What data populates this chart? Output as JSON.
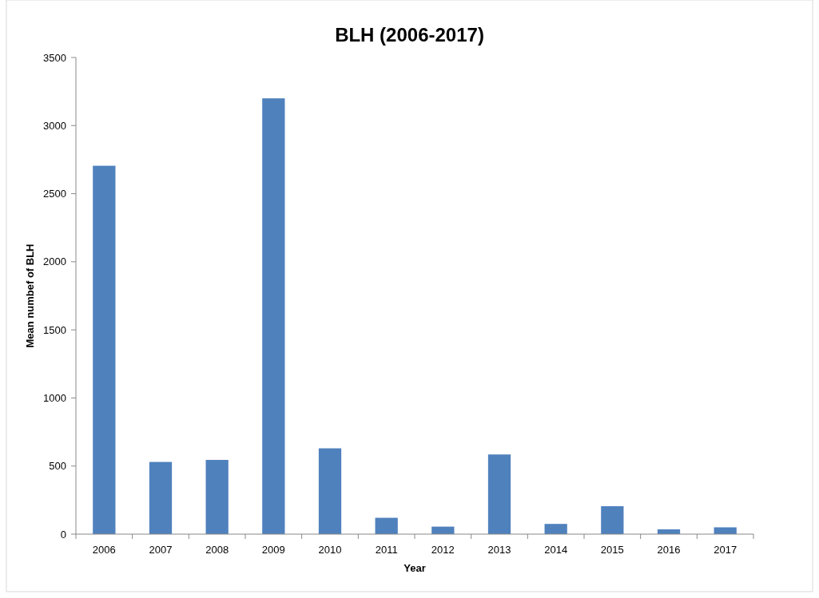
{
  "chart_data": {
    "type": "bar",
    "title": "BLH  (2006-2017)",
    "xlabel": "Year",
    "ylabel": "Mean numbef of BLH",
    "categories": [
      "2006",
      "2007",
      "2008",
      "2009",
      "2010",
      "2011",
      "2012",
      "2013",
      "2014",
      "2015",
      "2016",
      "2017"
    ],
    "values": [
      2705,
      530,
      545,
      3200,
      630,
      120,
      55,
      585,
      75,
      205,
      35,
      50
    ],
    "color": "#4f81bd",
    "ylim": [
      0,
      3500
    ],
    "yticks": [
      0,
      500,
      1000,
      1500,
      2000,
      2500,
      3000,
      3500
    ]
  }
}
